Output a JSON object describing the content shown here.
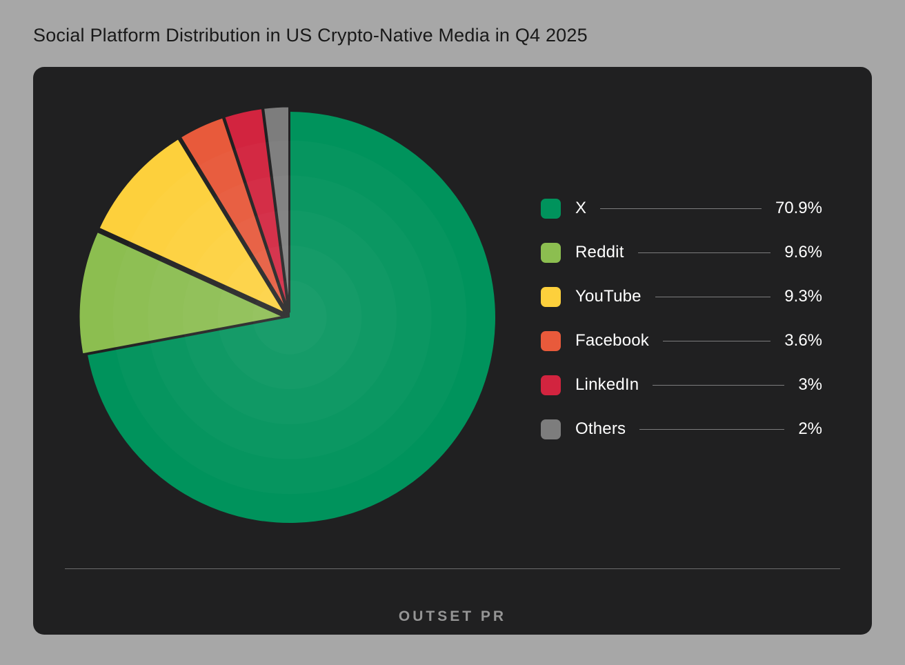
{
  "page": {
    "title": "Social Platform Distribution in US Crypto-Native Media in Q4 2025",
    "background_color": "#a7a7a7",
    "card_background_color": "#202021"
  },
  "chart_data": {
    "type": "pie",
    "title": "Social Platform Distribution in US Crypto-Native Media in Q4 2025",
    "categories": [
      "X",
      "Reddit",
      "YouTube",
      "Facebook",
      "LinkedIn",
      "Others"
    ],
    "values": [
      70.9,
      9.6,
      9.3,
      3.6,
      3,
      2
    ],
    "value_labels": [
      "70.9%",
      "9.6%",
      "9.3%",
      "3.6%",
      "3%",
      "2%"
    ],
    "colors": [
      "#00935c",
      "#8cbe50",
      "#fdd03c",
      "#e85a3b",
      "#d2243f",
      "#7d7d7d"
    ],
    "start_angle_deg": 0,
    "direction": "clockwise",
    "legend_position": "right",
    "slice_outline_color": "#202021"
  },
  "footer": {
    "logo_text": "OUTSET PR"
  }
}
